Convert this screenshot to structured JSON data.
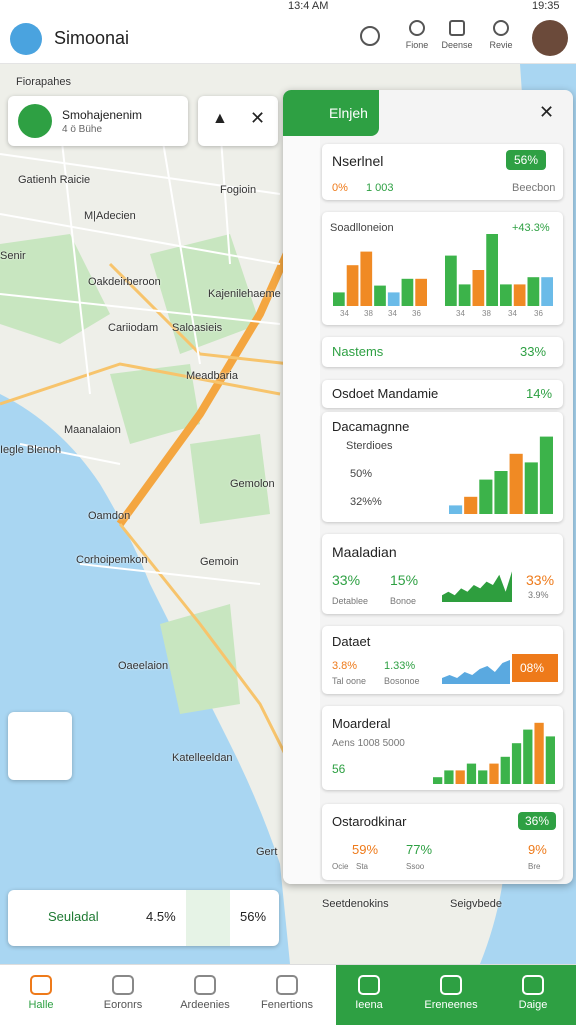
{
  "status_bar": {
    "time_left": "13:4 AM",
    "time_right": "19:35"
  },
  "header": {
    "title": "Simoonai",
    "actions": [
      "Fione",
      "Deense",
      "Revie"
    ]
  },
  "map": {
    "labels": [
      "Fiorapahes",
      "Gatienh Raicie",
      "Fogioin",
      "M|Adecien",
      "Senir",
      "Oakdeirberoon",
      "Kajenilehaeme",
      "Cariiodam",
      "Saloasieis",
      "Meadbaria",
      "Maanalaion",
      "Iegle Blenoh",
      "Gemolon",
      "Oamdon",
      "Corhoipemkon",
      "Gemoin",
      "Oaeelaion",
      "Katelleeldan",
      "Gert",
      "Seetdenokins",
      "Seigvbede"
    ]
  },
  "search_card": {
    "title": "Smohajenenim",
    "subtitle": "4 ö Bühe"
  },
  "panel": {
    "tab": "Elnjeh",
    "cards": [
      {
        "title": "Nserlnel",
        "badge": "56%",
        "stat1": "0%",
        "stat2": "1 003",
        "note": "Beecbon"
      },
      {
        "title": "Soadlloneion",
        "value": "+43.3%",
        "axis_labels": [
          "34",
          "38",
          "34",
          "36",
          "34",
          "38",
          "34",
          "36"
        ],
        "charts": [
          {
            "type": "bar",
            "ylim": [
              0,
              10
            ],
            "values": [
              2,
              6,
              8,
              3,
              2,
              4,
              4
            ],
            "colors": [
              "#3cb34a",
              "#f08a24",
              "#f08a24",
              "#3cb34a",
              "#6bbbe8",
              "#3cb34a",
              "#f08a24"
            ]
          },
          {
            "type": "bar",
            "ylim": [
              0,
              10
            ],
            "values": [
              7,
              3,
              5,
              10,
              3,
              3,
              4,
              4
            ],
            "colors": [
              "#3cb34a",
              "#3cb34a",
              "#f08a24",
              "#3cb34a",
              "#3cb34a",
              "#f08a24",
              "#3cb34a",
              "#6bbbe8"
            ]
          }
        ]
      },
      {
        "title": "Nastems",
        "value": "33%"
      },
      {
        "title": "Osdoet Mandamie",
        "value": "14%"
      },
      {
        "title": "Dacamagnne",
        "subtitle": "Sterdioes",
        "row1": "50%",
        "row2": "32%%",
        "chart": {
          "type": "bar",
          "ylim": [
            0,
            10
          ],
          "values": [
            1,
            2,
            4,
            5,
            7,
            6,
            9
          ],
          "colors": [
            "#6bbbe8",
            "#f08a24",
            "#3cb34a",
            "#3cb34a",
            "#f08a24",
            "#3cb34a",
            "#3cb34a"
          ]
        }
      },
      {
        "title": "Maaladian",
        "stats": [
          "33%",
          "15%",
          "33%"
        ],
        "labels": [
          "Detablee",
          "Bonoe",
          "3.9%"
        ],
        "chart": {
          "type": "area",
          "ylim": [
            0,
            10
          ],
          "values": [
            2,
            3,
            2,
            4,
            3,
            5,
            4,
            6,
            5,
            8,
            3,
            9
          ],
          "color": "#2e9e3e"
        }
      },
      {
        "title": "Dataet",
        "stats": [
          "3.8%",
          "1.33%",
          "08%"
        ],
        "labels": [
          "Tal oone",
          "Bosonoe"
        ],
        "chart": {
          "type": "area",
          "ylim": [
            0,
            10
          ],
          "values": [
            2,
            3,
            2,
            4,
            3,
            5,
            6,
            4,
            7,
            8
          ],
          "color": "#5aa9e0"
        }
      },
      {
        "title": "Moarderal",
        "subtitle": "Aens 1008 5000",
        "value": "56",
        "chart": {
          "type": "bar",
          "ylim": [
            0,
            10
          ],
          "values": [
            1,
            2,
            2,
            3,
            2,
            3,
            4,
            6,
            8,
            9,
            7
          ],
          "colors": [
            "#3cb34a",
            "#3cb34a",
            "#f08a24",
            "#3cb34a",
            "#3cb34a",
            "#f08a24",
            "#3cb34a",
            "#3cb34a",
            "#3cb34a",
            "#f08a24",
            "#3cb34a"
          ]
        }
      },
      {
        "title": "Ostarodkinar",
        "badge": "36%",
        "stats": [
          "59%",
          "77%",
          "9%"
        ],
        "labels": [
          "Ocie",
          "Sta",
          "Ssoo",
          "Bre"
        ]
      }
    ]
  },
  "bottom_card": {
    "title": "Seuladal",
    "value1": "4.5%",
    "value2": "56%"
  },
  "nav": [
    "Halle",
    "Eoronrs",
    "Ardeenies",
    "Fenertions",
    "Ieena",
    "Ereneenes",
    "Daige"
  ]
}
